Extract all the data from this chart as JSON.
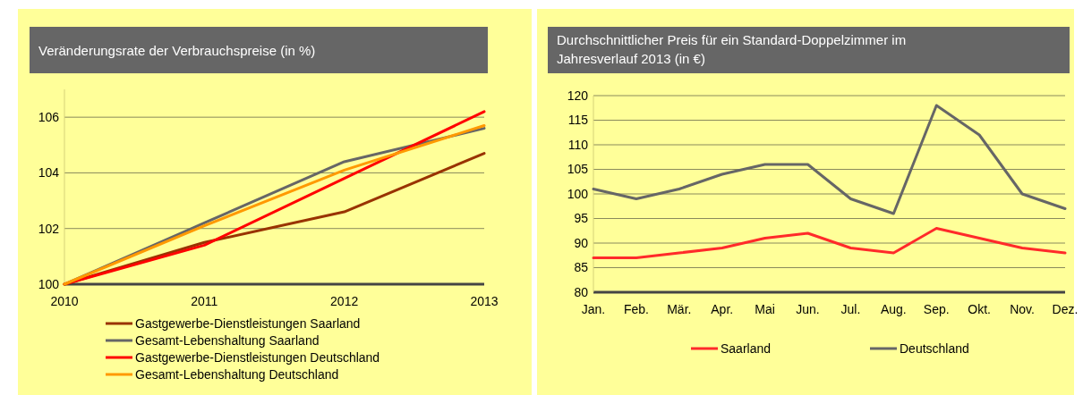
{
  "chart_data": [
    {
      "type": "line",
      "title": "Veränderungsrate der Verbrauchspreise (in %)",
      "categories": [
        "2010",
        "2011",
        "2012",
        "2013"
      ],
      "ylim": [
        100,
        107
      ],
      "yticks": [
        100,
        102,
        104,
        106
      ],
      "grid": "y",
      "legend": "bottom",
      "series": [
        {
          "name": "Gastgewerbe-Dienstleistungen Saarland",
          "color": "#993300",
          "values": [
            100,
            101.5,
            102.6,
            104.7
          ]
        },
        {
          "name": "Gesamt-Lebenshaltung Saarland",
          "color": "#666666",
          "values": [
            100,
            102.2,
            104.4,
            105.6
          ]
        },
        {
          "name": "Gastgewerbe-Dienstleistungen Deutschland",
          "color": "#ff0000",
          "values": [
            100,
            101.4,
            103.8,
            106.2
          ]
        },
        {
          "name": "Gesamt-Lebenshaltung Deutschland",
          "color": "#ff9900",
          "values": [
            100,
            102.1,
            104.1,
            105.7
          ]
        }
      ]
    },
    {
      "type": "line",
      "title": "Durchschnittlicher Preis für ein Standard-Doppelzimmer im Jahresverlauf 2013 (in €)",
      "categories": [
        "Jan.",
        "Feb.",
        "Mär.",
        "Apr.",
        "Mai",
        "Jun.",
        "Jul.",
        "Aug.",
        "Sep.",
        "Okt.",
        "Nov.",
        "Dez."
      ],
      "ylim": [
        80,
        120
      ],
      "yticks": [
        80,
        85,
        90,
        95,
        100,
        105,
        110,
        115,
        120
      ],
      "grid": "y",
      "legend": "bottom",
      "series": [
        {
          "name": "Saarland",
          "color": "#ff2a2a",
          "values": [
            87,
            87,
            88,
            89,
            91,
            92,
            89,
            88,
            93,
            91,
            89,
            88
          ]
        },
        {
          "name": "Deutschland",
          "color": "#666666",
          "values": [
            101,
            99,
            101,
            104,
            106,
            106,
            99,
            96,
            118,
            112,
            100,
            97
          ]
        }
      ]
    }
  ]
}
